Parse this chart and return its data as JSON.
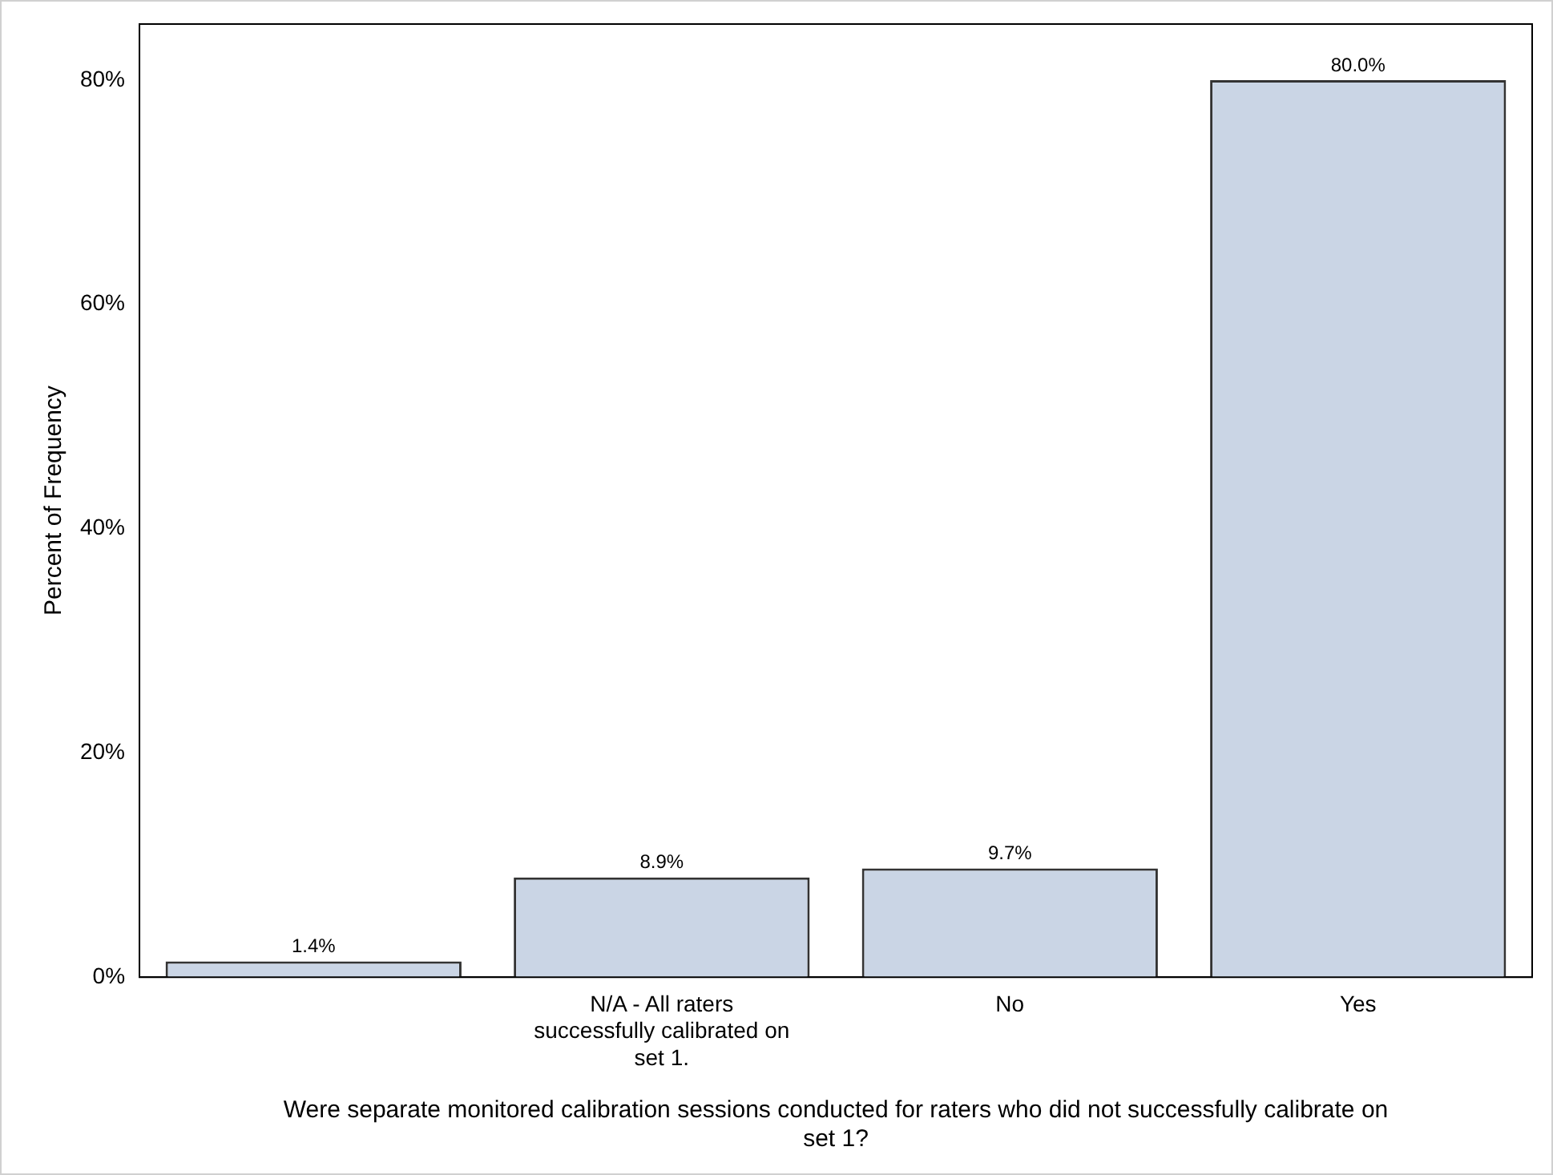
{
  "chart_data": {
    "type": "bar",
    "xlabel": "Were separate monitored calibration sessions conducted for raters who did not successfully calibrate on set 1?",
    "ylabel": "Percent of Frequency",
    "categories": [
      null,
      "N/A - All raters successfully calibrated on set 1.",
      "No",
      "Yes"
    ],
    "values": [
      1.4,
      8.9,
      9.7,
      80.0
    ],
    "value_labels": [
      "1.4%",
      "8.9%",
      "9.7%",
      "80.0%"
    ],
    "color": "#cad5e5",
    "ylim": [
      0,
      85
    ],
    "yticks": [
      {
        "value": 0,
        "label": "0%"
      },
      {
        "value": 20,
        "label": "20%"
      },
      {
        "value": 40,
        "label": "40%"
      },
      {
        "value": 60,
        "label": "60%"
      },
      {
        "value": 80,
        "label": "80%"
      }
    ],
    "grid": false,
    "legend": false
  }
}
